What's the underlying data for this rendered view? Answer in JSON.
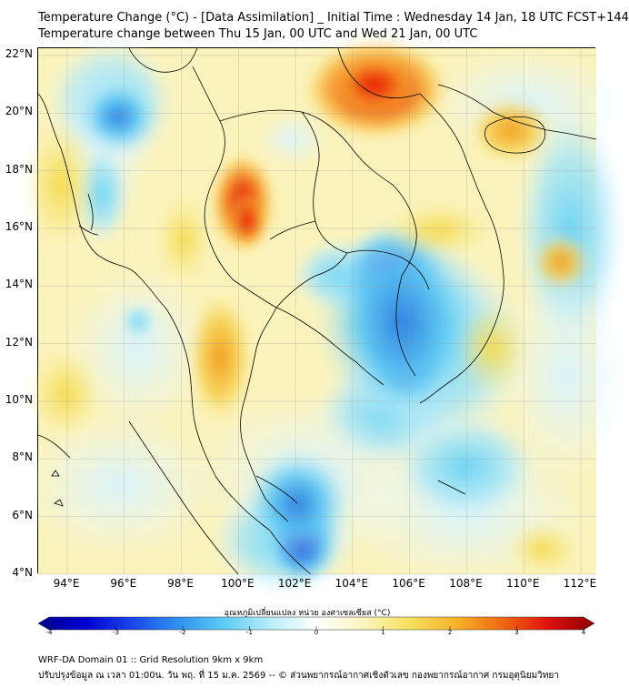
{
  "header": {
    "title_line1": "Temperature Change (°C) - [Data Assimilation] _ Initial Time : Wednesday 14 Jan, 18 UTC FCST+144",
    "title_line2": "Temperature change between Thu 15 Jan, 00 UTC and Wed 21 Jan, 00 UTC"
  },
  "map": {
    "lat_labels": [
      "22°N",
      "20°N",
      "18°N",
      "16°N",
      "14°N",
      "12°N",
      "10°N",
      "8°N",
      "6°N",
      "4°N"
    ],
    "lon_labels": [
      "94°E",
      "96°E",
      "98°E",
      "100°E",
      "102°E",
      "104°E",
      "106°E",
      "108°E",
      "110°E",
      "112°E"
    ],
    "background_color": "#fdf6c8",
    "hotspots": [
      {
        "type": "warm",
        "strength": "strong",
        "color": "#e81010"
      },
      {
        "type": "warm",
        "strength": "strong",
        "color": "#e81010"
      },
      {
        "type": "warm",
        "strength": "moderate",
        "color": "#f7a21a"
      },
      {
        "type": "warm",
        "strength": "moderate",
        "color": "#f7a21a"
      },
      {
        "type": "cold",
        "strength": "strong",
        "color": "#1031c8"
      },
      {
        "type": "cold",
        "strength": "strong",
        "color": "#1031c8"
      },
      {
        "type": "cold",
        "strength": "moderate",
        "color": "#2f7fe0"
      },
      {
        "type": "cold",
        "strength": "moderate",
        "color": "#2f7fe0"
      }
    ]
  },
  "colorbar": {
    "label": "อุณหภูมิเปลี่ยนแปลง หน่วย องศาเซลเซียส (°C)",
    "ticks": [
      "-4",
      "-3",
      "-2",
      "-1",
      "0",
      "1",
      "2",
      "3",
      "4"
    ],
    "colors": [
      "#00008b",
      "#0000d0",
      "#1a44e8",
      "#2f8ff0",
      "#5ccdf5",
      "#b8eefa",
      "#ffffff",
      "#fbf7c0",
      "#f6e060",
      "#f6b42a",
      "#f06a10",
      "#e01010",
      "#8b0000"
    ]
  },
  "footer": {
    "line1": "WRF-DA Domain 01 :: Grid Resolution 9km x 9km",
    "line2": "ปรับปรุงข้อมูล ณ เวลา 01:00น. วัน พฤ. ที่ 15 ม.ค. 2569 -- © ส่วนพยากรณ์อากาศเชิงตัวเลข กองพยากรณ์อากาศ กรมอุตุนิยมวิทยา"
  }
}
